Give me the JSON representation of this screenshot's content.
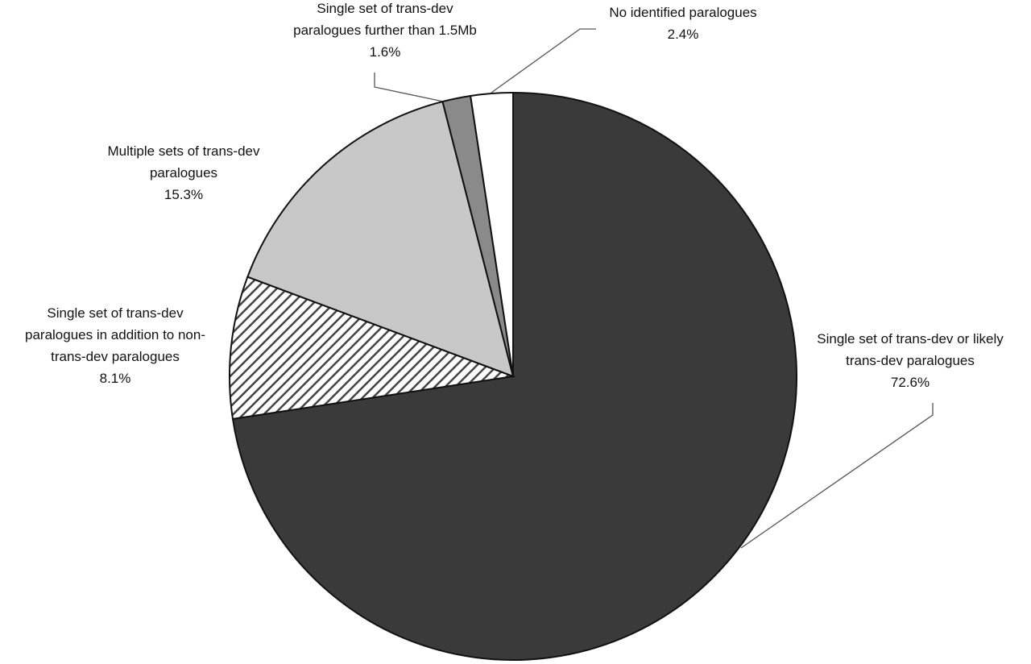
{
  "chart_data": {
    "type": "pie",
    "categories": [
      "Single set of trans-dev or likely\ntrans-dev paralogues",
      "Single set of trans-dev\nparalogues in addition to non-\ntrans-dev paralogues",
      "Multiple sets of trans-dev\nparalogues",
      "Single set of trans-dev\nparalogues further than 1.5Mb",
      "No identified paralogues"
    ],
    "values": [
      72.6,
      8.1,
      15.3,
      1.6,
      2.4
    ],
    "value_labels": [
      "72.6%",
      "8.1%",
      "15.3%",
      "1.6%",
      "2.4%"
    ],
    "colors": [
      "#3a3a3a",
      "#ffffff",
      "#c8c8c8",
      "#8a8a8a",
      "#ffffff"
    ],
    "hatched_slices": [
      1
    ]
  }
}
